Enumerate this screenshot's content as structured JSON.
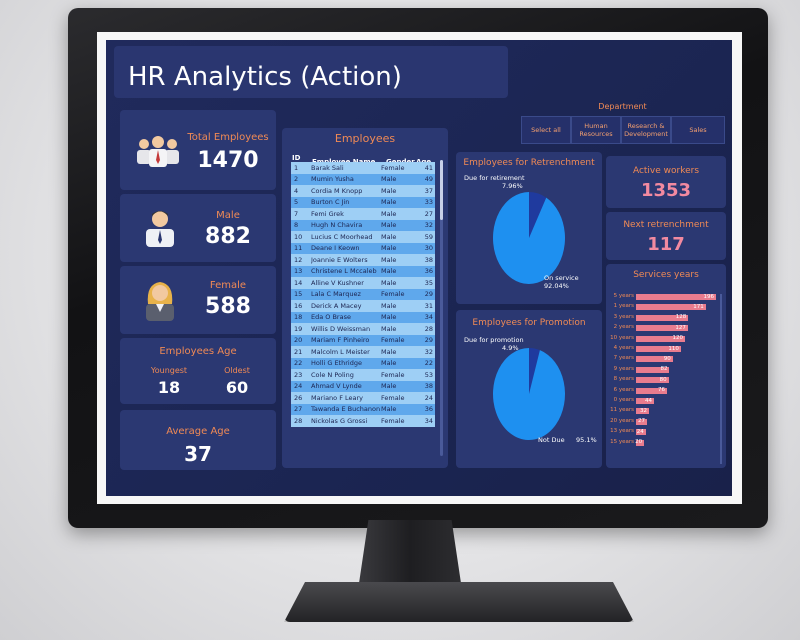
{
  "dashboard": {
    "title": "HR Analytics (Action)",
    "department": {
      "title": "Department",
      "options": [
        "Select all",
        "Human Resources",
        "Research & Development",
        "Sales"
      ]
    },
    "kpis": {
      "total_employees": {
        "label": "Total Employees",
        "value": "1470"
      },
      "male": {
        "label": "Male",
        "value": "882"
      },
      "female": {
        "label": "Female",
        "value": "588"
      },
      "employees_age": {
        "label": "Employees Age",
        "youngest_label": "Youngest",
        "youngest_value": "18",
        "oldest_label": "Oldest",
        "oldest_value": "60"
      },
      "average_age": {
        "label": "Average Age",
        "value": "37"
      },
      "active_workers": {
        "label": "Active workers",
        "value": "1353"
      },
      "next_retrenchment": {
        "label": "Next retrenchment",
        "value": "117"
      }
    },
    "employees_table": {
      "title": "Employees",
      "columns": [
        "ID",
        "Employee Name",
        "Gender",
        "Age"
      ],
      "rows": [
        [
          "1",
          "Barak Sali",
          "Female",
          "41"
        ],
        [
          "2",
          "Mumin Yusha",
          "Male",
          "49"
        ],
        [
          "4",
          "Cordia M Knopp",
          "Male",
          "37"
        ],
        [
          "5",
          "Burton C Jin",
          "Male",
          "33"
        ],
        [
          "7",
          "Femi Grek",
          "Male",
          "27"
        ],
        [
          "8",
          "Hugh N Chavira",
          "Male",
          "32"
        ],
        [
          "10",
          "Lucius C Moorhead",
          "Male",
          "59"
        ],
        [
          "11",
          "Deane I Keown",
          "Male",
          "30"
        ],
        [
          "12",
          "Joannie E Wolters",
          "Male",
          "38"
        ],
        [
          "13",
          "Christene L Mccaleb",
          "Male",
          "36"
        ],
        [
          "14",
          "Alline V Kushner",
          "Male",
          "35"
        ],
        [
          "15",
          "Lala C Marquez",
          "Female",
          "29"
        ],
        [
          "16",
          "Derick A Macey",
          "Male",
          "31"
        ],
        [
          "18",
          "Eda O Brase",
          "Male",
          "34"
        ],
        [
          "19",
          "Willis D Weissman",
          "Male",
          "28"
        ],
        [
          "20",
          "Mariam F Pinheiro",
          "Female",
          "29"
        ],
        [
          "21",
          "Malcolm L Meister",
          "Male",
          "32"
        ],
        [
          "22",
          "Holli G Ethridge",
          "Male",
          "22"
        ],
        [
          "23",
          "Cole N Poling",
          "Female",
          "53"
        ],
        [
          "24",
          "Ahmad V Lynde",
          "Male",
          "38"
        ],
        [
          "26",
          "Mariano F Leary",
          "Female",
          "24"
        ],
        [
          "27",
          "Tawanda E Buchanon",
          "Male",
          "36"
        ],
        [
          "28",
          "Nickolas G Grossi",
          "Female",
          "34"
        ]
      ]
    },
    "retrenchment_pie": {
      "title": "Employees for Retrenchment",
      "slices": [
        {
          "label": "Due for retirement",
          "value": 7.96,
          "display": "7.96%",
          "color": "#1f3a9e"
        },
        {
          "label": "On service",
          "value": 92.04,
          "display": "92.04%",
          "color": "#1e90f0"
        }
      ]
    },
    "promotion_pie": {
      "title": "Employees for Promotion",
      "slices": [
        {
          "label": "Due for promotion",
          "value": 4.9,
          "display": "4.9%",
          "color": "#1f3a9e"
        },
        {
          "label": "Not Due",
          "value": 95.1,
          "display": "95.1%",
          "color": "#1e90f0"
        }
      ]
    },
    "services_years": {
      "title": "Services years",
      "bars": [
        {
          "label": "5 years",
          "value": 196
        },
        {
          "label": "1 years",
          "value": 171
        },
        {
          "label": "3 years",
          "value": 128
        },
        {
          "label": "2 years",
          "value": 127
        },
        {
          "label": "10 years",
          "value": 120
        },
        {
          "label": "4 years",
          "value": 110
        },
        {
          "label": "7 years",
          "value": 90
        },
        {
          "label": "9 years",
          "value": 82
        },
        {
          "label": "8 years",
          "value": 80
        },
        {
          "label": "6 years",
          "value": 76
        },
        {
          "label": "0 years",
          "value": 44
        },
        {
          "label": "11 years",
          "value": 32
        },
        {
          "label": "20 years",
          "value": 27
        },
        {
          "label": "13 years",
          "value": 24
        },
        {
          "label": "15 years",
          "value": 20
        }
      ]
    },
    "colors": {
      "accent_orange": "#f08a55",
      "bar_pink": "#e97c8e",
      "pie_light": "#1e90f0",
      "pie_dark": "#1f3a9e",
      "bg_navy": "#1d2754"
    }
  }
}
